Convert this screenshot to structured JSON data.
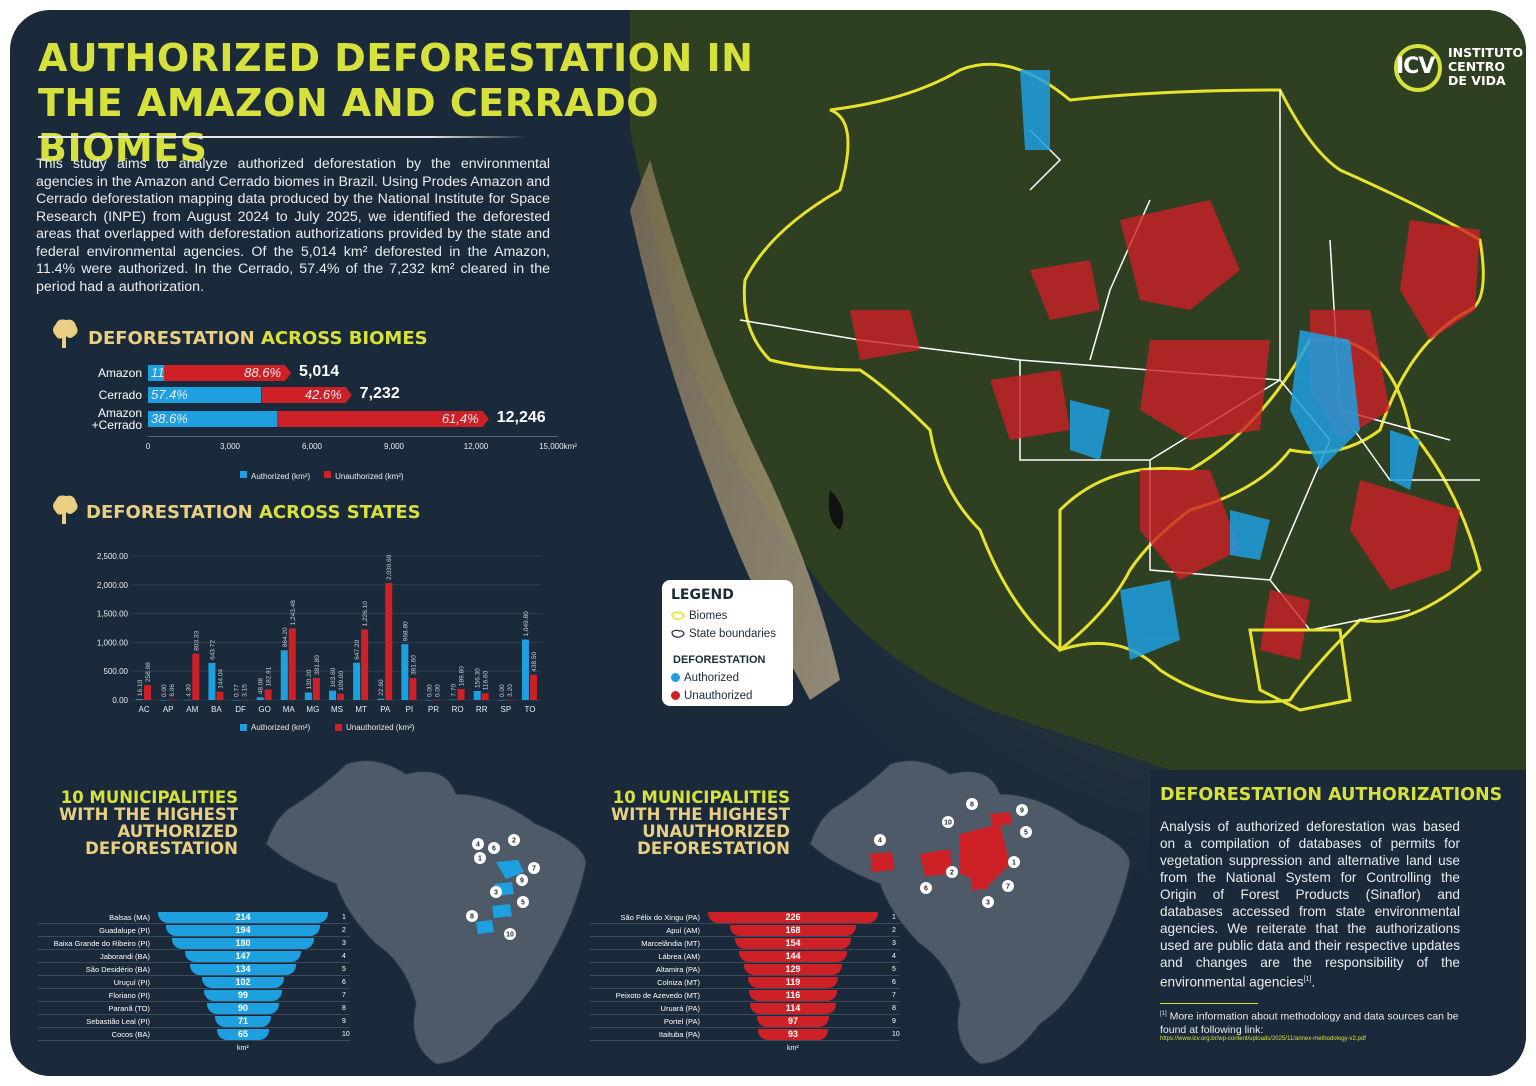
{
  "header": {
    "title": "AUTHORIZED DEFORESTATION IN THE AMAZON AND CERRADO BIOMES",
    "intro": "This study aims to analyze authorized deforestation by the environmental agencies in the Amazon and Cerrado biomes in Brazil. Using Prodes Amazon and Cerrado deforestation mapping data produced by the National Institute for Space Research (INPE) from August 2024 to July 2025, we identified the deforested areas that overlapped with deforestation authorizations provided by the state and federal environmental agencies. Of the 5,014 km² deforested in the Amazon, 11.4% were authorized. In the Cerrado, 57.4% of the 7,232 km² cleared in the period had a authorization."
  },
  "logo": {
    "mark": "ICV",
    "line1": "INSTITUTO",
    "line2": "CENTRO",
    "line3": "DE VIDA"
  },
  "colors": {
    "authorized": "#1e9fe0",
    "unauthorized": "#cd2027",
    "accent": "#d7e13b",
    "beige": "#e9cf83",
    "background": "#1b2a3a"
  },
  "biomes_section": {
    "title_a": "DEFORESTATION",
    "title_b": "ACROSS BIOMES",
    "icon": "tree-icon"
  },
  "states_section": {
    "title_a": "DEFORESTATION",
    "title_b": "ACROSS STATES",
    "icon": "tree-icon"
  },
  "legend": {
    "title": "LEGEND",
    "biomes": "Biomes",
    "state_boundaries": "State boundaries",
    "deforestation": "DEFORESTATION",
    "authorized": "Authorized",
    "unauthorized": "Unauthorized"
  },
  "authorizations_section": {
    "title": "DEFORESTATION AUTHORIZATIONS",
    "text": "Analysis of authorized deforestation was based on a compilation of databases of permits for vegetation suppression and alternative land use from the National System for Controlling the Origin of Forest Products (Sinaflor) and databases accessed from state environmental agencies. We reiterate that the authorizations used are public data and their respective updates and changes are the responsibility of the environmental agencies",
    "footnote_mark": "[1]",
    "footnote": "More information about methodology and data sources can be found at following link:",
    "link": "https://www.icv.org.br/wp-content/uploads/2025/11/annex-methodology-v2.pdf"
  },
  "chart_data": [
    {
      "type": "bar",
      "orientation": "horizontal",
      "stacked": true,
      "categories": [
        "Amazon",
        "Cerrado",
        "Amazon\n+Cerrado"
      ],
      "category_lines": [
        [
          "Amazon"
        ],
        [
          "Cerrado"
        ],
        [
          "Amazon",
          "+Cerrado"
        ]
      ],
      "series": [
        {
          "name": "Authorized (km²)",
          "values": [
            571,
            4151,
            4722
          ],
          "labels": [
            "11.4%",
            "57.4%",
            "38.6%"
          ]
        },
        {
          "name": "Unauthorized (km²)",
          "values": [
            4443,
            3081,
            7524
          ],
          "labels": [
            "88.6%",
            "42.6%",
            "61,4%"
          ]
        }
      ],
      "totals": [
        "5,014",
        "7,232",
        "12,246"
      ],
      "xticks": [
        "0",
        "3,000",
        "6,000",
        "9,000",
        "12,000",
        "15,000km²"
      ],
      "xlim": [
        0,
        15000
      ],
      "legend": "bottom"
    },
    {
      "type": "bar",
      "orientation": "vertical",
      "categories": [
        "AC",
        "AP",
        "AM",
        "BA",
        "DF",
        "GO",
        "MA",
        "MG",
        "MS",
        "MT",
        "PA",
        "PI",
        "PR",
        "RO",
        "RR",
        "SP",
        "TO"
      ],
      "series": [
        {
          "name": "Authorized (km²)",
          "values": [
            16.1,
            0.0,
            4.3,
            643.72,
            0.77,
            48.08,
            864.2,
            130.2,
            163.6,
            647.2,
            22.6,
            968.8,
            0.0,
            7.7,
            156.3,
            0.0,
            1049.8
          ],
          "labels": [
            "16.10",
            "0.00",
            "4.30",
            "643.72",
            "0.77",
            "48.08",
            "864.20",
            "130.20",
            "163.60",
            "647.20",
            "22.60",
            "968.80",
            "0.00",
            "7.70",
            "156.30",
            "0.00",
            "1,049.80"
          ]
        },
        {
          "name": "Unauthorized (km²)",
          "values": [
            258.98,
            6.06,
            803.33,
            144.04,
            3.15,
            182.91,
            1243.48,
            381.8,
            109.0,
            1226.1,
            2030.6,
            381.6,
            0.0,
            189.8,
            116.6,
            3.2,
            438.5
          ],
          "labels": [
            "258.98",
            "6.06",
            "803.33",
            "144.04",
            "3.15",
            "182.91",
            "1,243.48",
            "381.80",
            "109.00",
            "1,226.10",
            "2,030.60",
            "381.60",
            "0.00",
            "189.80",
            "116.60",
            "3.20",
            "438.50"
          ]
        }
      ],
      "yticks": [
        "0.00",
        "500.00",
        "1,000.00",
        "1,500.00",
        "2,000.00",
        "2,500.00"
      ],
      "ylim": [
        0,
        2500
      ],
      "legend": "bottom"
    },
    {
      "type": "bar",
      "orientation": "horizontal",
      "title_lines": [
        "10 MUNICIPALITIES",
        "WITH THE HIGHEST",
        "AUTHORIZED",
        "DEFORESTATION"
      ],
      "categories": [
        "Balsas (MA)",
        "Guadalupe (PI)",
        "Baixa Grande do Ribeiro (PI)",
        "Jaborandi (BA)",
        "São Desidério (BA)",
        "Uruçuí (PI)",
        "Floriano (PI)",
        "Paranã (TO)",
        "Sebastião Leal (PI)",
        "Cocos (BA)"
      ],
      "ranks": [
        "1",
        "2",
        "3",
        "4",
        "5",
        "6",
        "7",
        "8",
        "9",
        "10"
      ],
      "values": [
        214,
        194,
        180,
        147,
        134,
        102,
        99,
        90,
        71,
        65
      ],
      "unit": "km²"
    },
    {
      "type": "bar",
      "orientation": "horizontal",
      "title_lines": [
        "10 MUNICIPALITIES",
        "WITH THE HIGHEST",
        "UNAUTHORIZED",
        "DEFORESTATION"
      ],
      "categories": [
        "São Félix do Xingu (PA)",
        "Apuí (AM)",
        "Marcelândia (MT)",
        "Lábrea (AM)",
        "Altamira (PA)",
        "Colniza (MT)",
        "Peixoto de Azevedo (MT)",
        "Uruará (PA)",
        "Portel (PA)",
        "Itaituba (PA)"
      ],
      "ranks": [
        "1",
        "2",
        "3",
        "4",
        "5",
        "6",
        "7",
        "8",
        "9",
        "10"
      ],
      "values": [
        226,
        168,
        154,
        144,
        129,
        119,
        116,
        114,
        97,
        93
      ],
      "unit": "km²"
    }
  ],
  "map_markers": {
    "authorized": [
      "1",
      "2",
      "3",
      "4",
      "5",
      "6",
      "7",
      "8",
      "9",
      "10"
    ],
    "unauthorized": [
      "1",
      "2",
      "3",
      "4",
      "5",
      "6",
      "7",
      "8",
      "9",
      "10"
    ]
  }
}
